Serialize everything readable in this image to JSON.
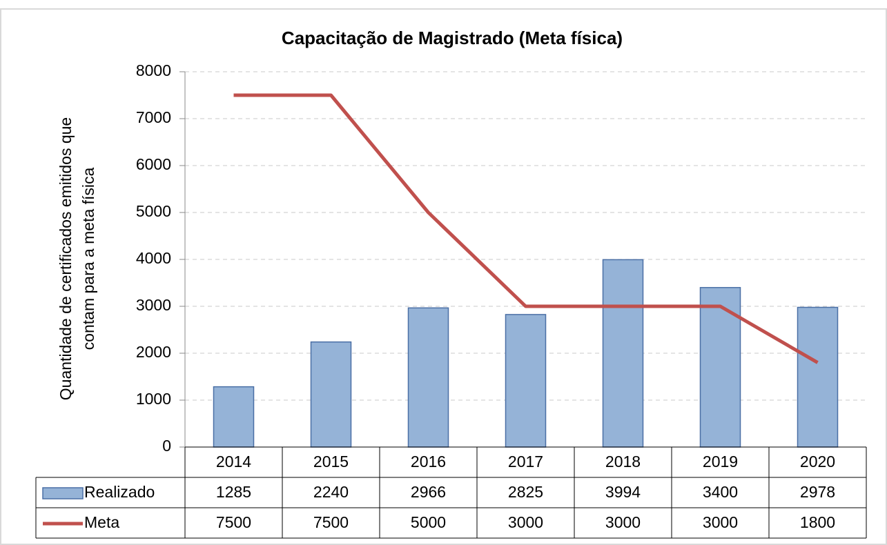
{
  "chart_data": {
    "type": "bar_line_table",
    "title": "Capacitação de Magistrado (Meta física)",
    "ylabel": [
      "Quantidade de certificados emitidos que",
      "contam para a meta física"
    ],
    "categories": [
      "2014",
      "2015",
      "2016",
      "2017",
      "2018",
      "2019",
      "2020"
    ],
    "series": [
      {
        "name": "Realizado",
        "type": "bar",
        "color": "#95b3d7",
        "values": [
          1285,
          2240,
          2966,
          2825,
          3994,
          3400,
          2978
        ]
      },
      {
        "name": "Meta",
        "type": "line",
        "color": "#c0504d",
        "values": [
          7500,
          7500,
          5000,
          3000,
          3000,
          3000,
          1800
        ]
      }
    ],
    "ylim": [
      0,
      8000
    ],
    "yticks": [
      0,
      1000,
      2000,
      3000,
      4000,
      5000,
      6000,
      7000,
      8000
    ],
    "grid": true
  }
}
